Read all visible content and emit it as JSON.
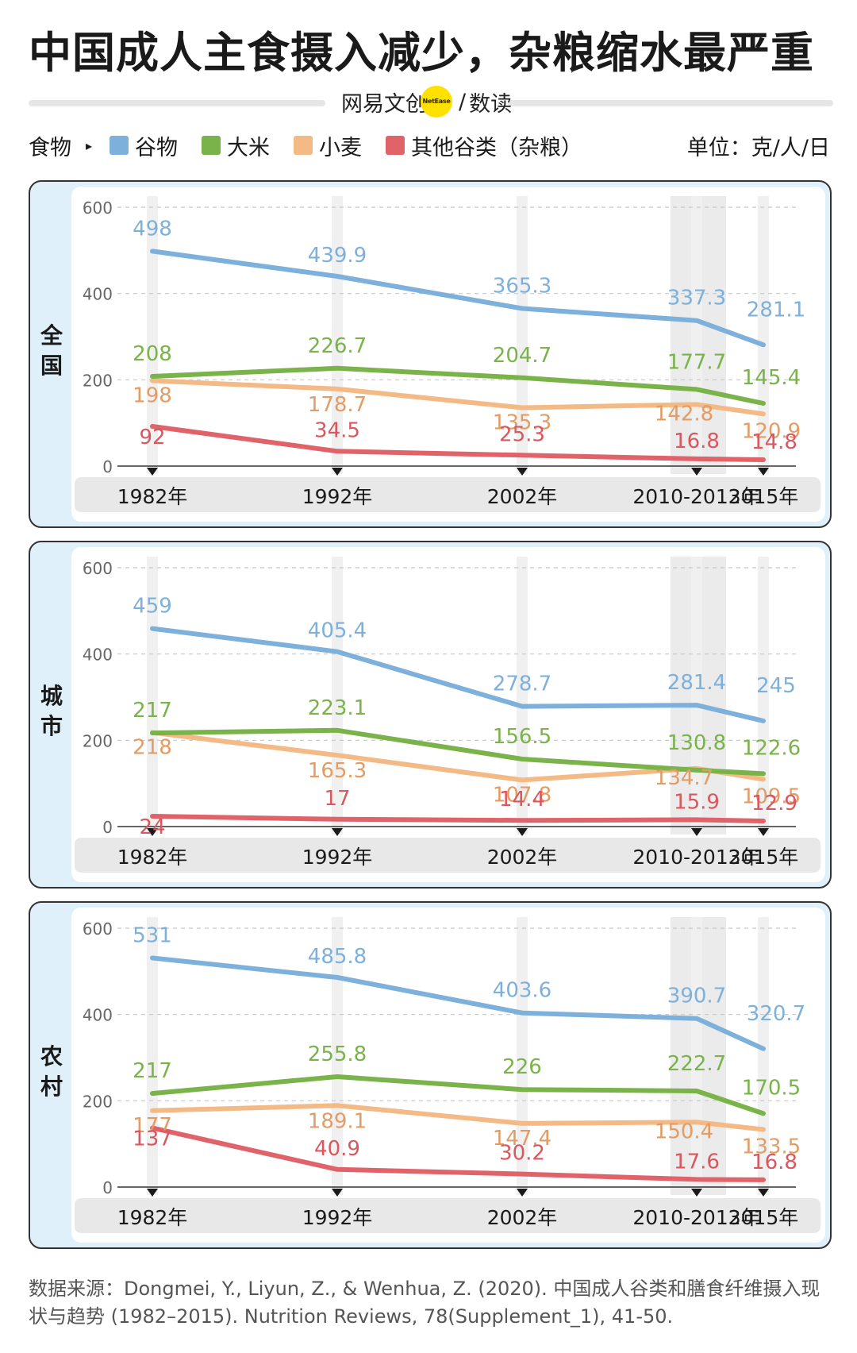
{
  "header": {
    "title": "中国成人主食摄入减少，杂粮缩水最严重",
    "brand_left": "网易文创",
    "brand_badge": "NetEase",
    "brand_slash": "/",
    "brand_right": "数读"
  },
  "legend": {
    "prefix": "食物",
    "arrow": "▸",
    "unit": "单位：克/人/日",
    "items": [
      {
        "label": "谷物",
        "color": "#7db0db"
      },
      {
        "label": "大米",
        "color": "#79b34a"
      },
      {
        "label": "小麦",
        "color": "#f3ba86"
      },
      {
        "label": "其他谷类（杂粮）",
        "color": "#e0636a"
      }
    ]
  },
  "panels": [
    {
      "label": "全\n国"
    },
    {
      "label": "城\n市"
    },
    {
      "label": "农\n村"
    }
  ],
  "source": "数据来源：Dongmei, Y., Liyun, Z., & Wenhua, Z. (2020). 中国成人谷类和膳食纤维摄入现状与趋势 (1982–2015). Nutrition Reviews, 78(Supplement_1), 41-50.",
  "chart_data": [
    {
      "type": "line",
      "panel": "全国",
      "categories": [
        "1982年",
        "1992年",
        "2002年",
        "2010-2013年",
        "2015年"
      ],
      "y_ticks": [
        "0",
        "200",
        "400",
        "600"
      ],
      "ylim": [
        0,
        600
      ],
      "series": [
        {
          "name": "谷物",
          "values": [
            498,
            439.9,
            365.3,
            337.3,
            281.1
          ],
          "labels": [
            "498",
            "439.9",
            "365.3",
            "337.3",
            "281.1"
          ],
          "color": "#7db0db"
        },
        {
          "name": "大米",
          "values": [
            208,
            226.7,
            204.7,
            177.7,
            145.4
          ],
          "labels": [
            "208",
            "226.7",
            "204.7",
            "177.7",
            "145.4"
          ],
          "color": "#79b34a"
        },
        {
          "name": "小麦",
          "values": [
            198,
            178.7,
            135.3,
            142.8,
            120.9
          ],
          "labels": [
            "198",
            "178.7",
            "135.3",
            "142.8",
            "120.9"
          ],
          "color": "#f3ba86"
        },
        {
          "name": "其他谷类（杂粮）",
          "values": [
            92,
            34.5,
            25.3,
            16.8,
            14.8
          ],
          "labels": [
            "92",
            "34.5",
            "25.3",
            "16.8",
            "14.8"
          ],
          "color": "#e0636a"
        }
      ]
    },
    {
      "type": "line",
      "panel": "城市",
      "categories": [
        "1982年",
        "1992年",
        "2002年",
        "2010-2013年",
        "2015年"
      ],
      "y_ticks": [
        "0",
        "200",
        "400",
        "600"
      ],
      "ylim": [
        0,
        600
      ],
      "series": [
        {
          "name": "谷物",
          "values": [
            459,
            405.4,
            278.7,
            281.4,
            245
          ],
          "labels": [
            "459",
            "405.4",
            "278.7",
            "281.4",
            "245"
          ],
          "color": "#7db0db"
        },
        {
          "name": "大米",
          "values": [
            217,
            223.1,
            156.5,
            130.8,
            122.6
          ],
          "labels": [
            "217",
            "223.1",
            "156.5",
            "130.8",
            "122.6"
          ],
          "color": "#79b34a"
        },
        {
          "name": "小麦",
          "values": [
            218,
            165.3,
            107.8,
            134.7,
            109.5
          ],
          "labels": [
            "218",
            "165.3",
            "107.8",
            "134.7",
            "109.5"
          ],
          "color": "#f3ba86"
        },
        {
          "name": "其他谷类（杂粮）",
          "values": [
            24,
            17,
            14.4,
            15.9,
            12.9
          ],
          "labels": [
            "24",
            "17",
            "14.4",
            "15.9",
            "12.9"
          ],
          "color": "#e0636a"
        }
      ]
    },
    {
      "type": "line",
      "panel": "农村",
      "categories": [
        "1982年",
        "1992年",
        "2002年",
        "2010-2013年",
        "2015年"
      ],
      "y_ticks": [
        "0",
        "200",
        "400",
        "600"
      ],
      "ylim": [
        0,
        600
      ],
      "series": [
        {
          "name": "谷物",
          "values": [
            531,
            485.8,
            403.6,
            390.7,
            320.7
          ],
          "labels": [
            "531",
            "485.8",
            "403.6",
            "390.7",
            "320.7"
          ],
          "color": "#7db0db"
        },
        {
          "name": "大米",
          "values": [
            217,
            255.8,
            226,
            222.7,
            170.5
          ],
          "labels": [
            "217",
            "255.8",
            "226",
            "222.7",
            "170.5"
          ],
          "color": "#79b34a"
        },
        {
          "name": "小麦",
          "values": [
            177,
            189.1,
            147.4,
            150.4,
            133.5
          ],
          "labels": [
            "177",
            "189.1",
            "147.4",
            "150.4",
            "133.5"
          ],
          "color": "#f3ba86"
        },
        {
          "name": "其他谷类（杂粮）",
          "values": [
            137,
            40.9,
            30.2,
            17.6,
            16.8
          ],
          "labels": [
            "137",
            "40.9",
            "30.2",
            "17.6",
            "16.8"
          ],
          "color": "#e0636a"
        }
      ]
    }
  ]
}
